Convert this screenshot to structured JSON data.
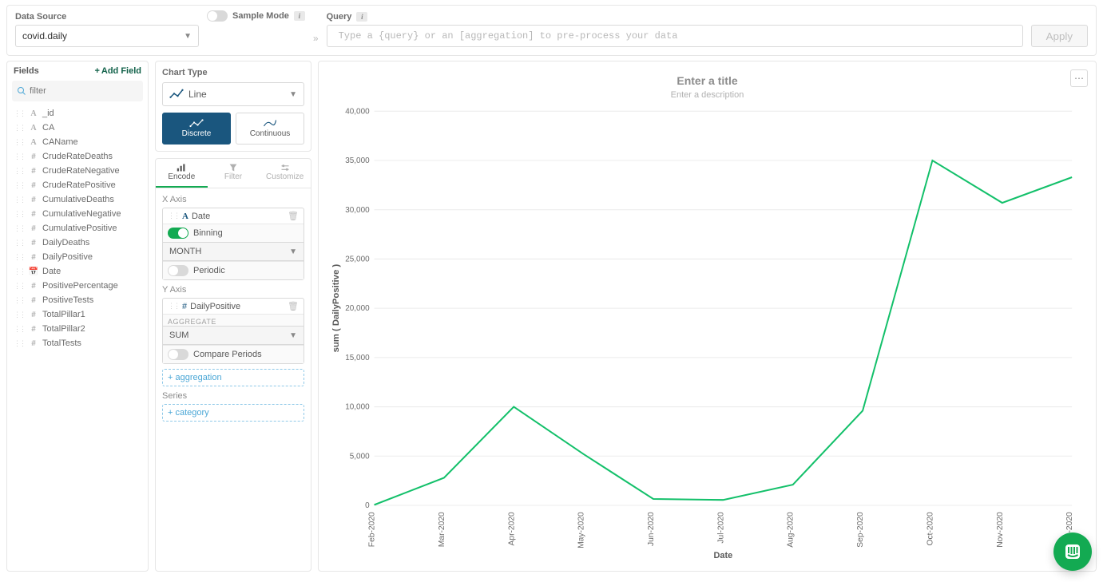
{
  "top": {
    "data_source_label": "Data Source",
    "data_source_value": "covid.daily",
    "sample_mode_label": "Sample Mode",
    "query_label": "Query",
    "query_placeholder": "Type a {query} or an [aggregation] to pre-process your data",
    "apply_label": "Apply"
  },
  "fields": {
    "title": "Fields",
    "add_field_label": "Add Field",
    "filter_placeholder": "filter",
    "items": [
      {
        "name": "_id",
        "type": "A"
      },
      {
        "name": "CA",
        "type": "A"
      },
      {
        "name": "CAName",
        "type": "A"
      },
      {
        "name": "CrudeRateDeaths",
        "type": "#"
      },
      {
        "name": "CrudeRateNegative",
        "type": "#"
      },
      {
        "name": "CrudeRatePositive",
        "type": "#"
      },
      {
        "name": "CumulativeDeaths",
        "type": "#"
      },
      {
        "name": "CumulativeNegative",
        "type": "#"
      },
      {
        "name": "CumulativePositive",
        "type": "#"
      },
      {
        "name": "DailyDeaths",
        "type": "#"
      },
      {
        "name": "DailyPositive",
        "type": "#"
      },
      {
        "name": "Date",
        "type": "D"
      },
      {
        "name": "PositivePercentage",
        "type": "#"
      },
      {
        "name": "PositiveTests",
        "type": "#"
      },
      {
        "name": "TotalPillar1",
        "type": "#"
      },
      {
        "name": "TotalPillar2",
        "type": "#"
      },
      {
        "name": "TotalTests",
        "type": "#"
      }
    ]
  },
  "config": {
    "chart_type_label": "Chart Type",
    "chart_type_value": "Line",
    "mode_discrete": "Discrete",
    "mode_continuous": "Continuous",
    "tabs": {
      "encode": "Encode",
      "filter": "Filter",
      "customize": "Customize"
    },
    "x_axis_label": "X Axis",
    "x_field": "Date",
    "binning_label": "Binning",
    "binning_value": "MONTH",
    "periodic_label": "Periodic",
    "y_axis_label": "Y Axis",
    "y_field": "DailyPositive",
    "aggregate_label": "AGGREGATE",
    "aggregate_value": "SUM",
    "compare_label": "Compare Periods",
    "add_aggregation": "+ aggregation",
    "series_label": "Series",
    "add_category": "+ category"
  },
  "chart": {
    "title_placeholder": "Enter a title",
    "desc_placeholder": "Enter a description",
    "type": "line",
    "x_title": "Date",
    "y_title": "sum ( DailyPositive )",
    "x_labels": [
      "Feb-2020",
      "Mar-2020",
      "Apr-2020",
      "May-2020",
      "Jun-2020",
      "Jul-2020",
      "Aug-2020",
      "Sep-2020",
      "Oct-2020",
      "Nov-2020",
      "Dec-2020"
    ],
    "y_ticks": [
      0,
      5000,
      10000,
      15000,
      20000,
      25000,
      30000,
      35000,
      40000
    ],
    "y_tick_labels": [
      "0",
      "5,000",
      "10,000",
      "15,000",
      "20,000",
      "25,000",
      "30,000",
      "35,000",
      "40,000"
    ],
    "y_min": 0,
    "y_max": 40000,
    "values": [
      50,
      2800,
      10000,
      5200,
      650,
      550,
      2100,
      9600,
      35000,
      30700,
      33300
    ],
    "series_color": "#13c06a",
    "grid_color": "#ececec",
    "line_width": 2,
    "background": "#ffffff"
  }
}
